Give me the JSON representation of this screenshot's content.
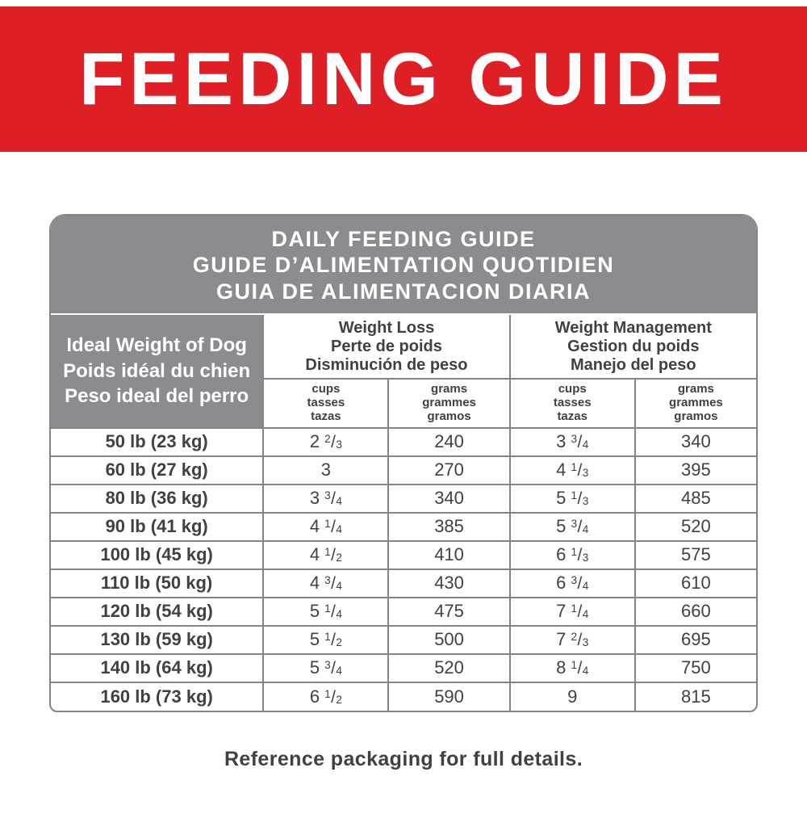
{
  "page": {
    "banner_title": "FEEDING GUIDE",
    "footer_note": "Reference packaging for full details."
  },
  "colors": {
    "red": "#df1f26",
    "header_gray": "#8a8c8f",
    "border_gray": "#828487",
    "text_dark": "#414042"
  },
  "table": {
    "title_lines": [
      "DAILY FEEDING GUIDE",
      "GUIDE D’ALIMENTATION QUOTIDIEN",
      "GUIA DE ALIMENTACION DIARIA"
    ],
    "weight_header_lines": [
      "Ideal Weight of Dog",
      "Poids idéal du chien",
      "Peso ideal del perro"
    ],
    "weight_loss_header_lines": [
      "Weight Loss",
      "Perte de poids",
      "Disminución de peso"
    ],
    "weight_mgmt_header_lines": [
      "Weight Management",
      "Gestion du poids",
      "Manejo del peso"
    ],
    "cups_header_lines": [
      "cups",
      "tasses",
      "tazas"
    ],
    "grams_header_lines": [
      "grams",
      "grammes",
      "gramos"
    ],
    "rows": [
      {
        "weight": "50 lb (23 kg)",
        "loss_cups": "2 2/3",
        "loss_grams": "240",
        "mgmt_cups": "3 3/4",
        "mgmt_grams": "340"
      },
      {
        "weight": "60 lb (27 kg)",
        "loss_cups": "3",
        "loss_grams": "270",
        "mgmt_cups": "4 1/3",
        "mgmt_grams": "395"
      },
      {
        "weight": "80 lb (36 kg)",
        "loss_cups": "3 3/4",
        "loss_grams": "340",
        "mgmt_cups": "5 1/3",
        "mgmt_grams": "485"
      },
      {
        "weight": "90 lb (41 kg)",
        "loss_cups": "4 1/4",
        "loss_grams": "385",
        "mgmt_cups": "5 3/4",
        "mgmt_grams": "520"
      },
      {
        "weight": "100 lb (45 kg)",
        "loss_cups": "4 1/2",
        "loss_grams": "410",
        "mgmt_cups": "6 1/3",
        "mgmt_grams": "575"
      },
      {
        "weight": "110 lb (50 kg)",
        "loss_cups": "4 3/4",
        "loss_grams": "430",
        "mgmt_cups": "6 3/4",
        "mgmt_grams": "610"
      },
      {
        "weight": "120 lb (54 kg)",
        "loss_cups": "5 1/4",
        "loss_grams": "475",
        "mgmt_cups": "7 1/4",
        "mgmt_grams": "660"
      },
      {
        "weight": "130 lb (59 kg)",
        "loss_cups": "5 1/2",
        "loss_grams": "500",
        "mgmt_cups": "7 2/3",
        "mgmt_grams": "695"
      },
      {
        "weight": "140 lb (64 kg)",
        "loss_cups": "5 3/4",
        "loss_grams": "520",
        "mgmt_cups": "8 1/4",
        "mgmt_grams": "750"
      },
      {
        "weight": "160 lb (73 kg)",
        "loss_cups": "6 1/2",
        "loss_grams": "590",
        "mgmt_cups": "9",
        "mgmt_grams": "815"
      }
    ]
  }
}
